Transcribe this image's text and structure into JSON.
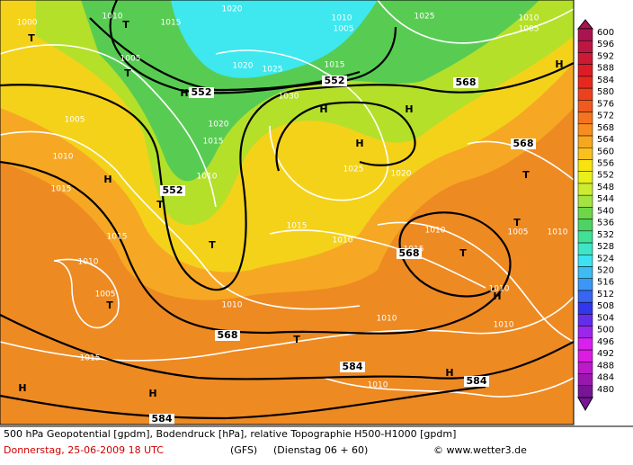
{
  "map": {
    "labels": [
      "1000",
      "T",
      "1010",
      "T",
      "1015",
      "1020",
      "1010",
      "1005",
      "1025",
      "1010",
      "1005",
      "H",
      "1005",
      "T",
      "1020",
      "1025",
      "1015",
      "552",
      "H",
      "1030",
      "552",
      "568",
      "H",
      "H",
      "1005",
      "1020",
      "1015",
      "H",
      "1010",
      "568",
      "1015",
      "H",
      "1010",
      "1025",
      "1020",
      "T",
      "552",
      "T",
      "1015",
      "1010",
      "1010",
      "1005",
      "1010",
      "T",
      "1015",
      "T",
      "1015",
      "568",
      "T",
      "1010",
      "1005",
      "T",
      "1010",
      "H",
      "1010",
      "1010",
      "1010",
      "568",
      "T",
      "1015",
      "584",
      "H",
      "584",
      "H",
      "H",
      "1010",
      "584"
    ]
  },
  "legend": {
    "values": [
      600,
      596,
      592,
      588,
      584,
      580,
      576,
      572,
      568,
      564,
      560,
      556,
      552,
      548,
      544,
      540,
      536,
      532,
      528,
      524,
      520,
      516,
      512,
      508,
      504,
      500,
      496,
      492,
      488,
      484,
      480
    ]
  },
  "footer": {
    "description": "500 hPa Geopotential [gpdm], Bodendruck [hPa], relative Topographie H500-H1000 [gpdm]",
    "date": "Donnerstag, 25-06-2009   18 UTC",
    "model": "(GFS)",
    "run": "(Dienstag 06 + 60)",
    "credit": "© www.wetter3.de"
  }
}
